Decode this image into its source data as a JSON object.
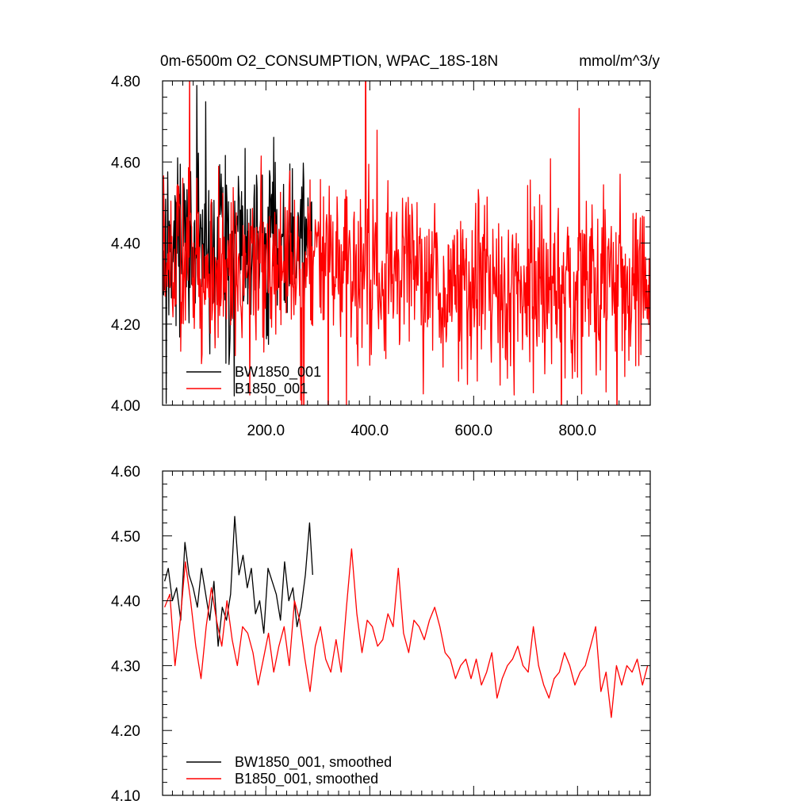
{
  "chart_data": [
    {
      "type": "line",
      "title": "0m-6500m O2_CONSUMPTION, WPAC_18S-18N",
      "units": "mmol/m^3/y",
      "xlabel": "",
      "ylabel": "",
      "xlim": [
        1,
        940
      ],
      "ylim": [
        4.0,
        4.8
      ],
      "x_ticks": [
        200,
        400,
        600,
        800
      ],
      "x_tick_labels": [
        "200.0",
        "400.0",
        "600.0",
        "800.0"
      ],
      "y_ticks": [
        4.0,
        4.2,
        4.4,
        4.6,
        4.8
      ],
      "y_tick_labels": [
        "4.00",
        "4.20",
        "4.40",
        "4.60",
        "4.80"
      ],
      "grid": false,
      "legend_position": "bottom-left",
      "series": [
        {
          "name": "BW1850_001",
          "color": "#000000",
          "x_range": [
            1,
            290
          ],
          "values_every_10_years": [
            4.4,
            4.46,
            4.34,
            4.5,
            4.38,
            4.42,
            4.3,
            4.47,
            4.36,
            4.41,
            4.33,
            4.45,
            4.39,
            4.28,
            4.43,
            4.48,
            4.35,
            4.42,
            4.37,
            4.4,
            4.31,
            4.46,
            4.38,
            4.44,
            4.34,
            4.42,
            4.39,
            4.47,
            4.36,
            4.43
          ]
        },
        {
          "name": "B1850_001",
          "color": "#ff0000",
          "x_range": [
            1,
            940
          ],
          "values_every_10_years": [
            4.38,
            4.4,
            4.33,
            4.39,
            4.36,
            4.41,
            4.31,
            4.37,
            4.35,
            4.33,
            4.29,
            4.36,
            4.32,
            4.38,
            4.33,
            4.3,
            4.35,
            4.37,
            4.31,
            4.34,
            4.33,
            4.37,
            4.34,
            4.32,
            4.38,
            4.36,
            4.33,
            4.3,
            4.36,
            4.35,
            4.39,
            4.33,
            4.35,
            4.37,
            4.34,
            4.3,
            4.33,
            4.35,
            4.31,
            4.35,
            4.34,
            4.37,
            4.32,
            4.34,
            4.36,
            4.33,
            4.37,
            4.35,
            4.34,
            4.32,
            4.3,
            4.33,
            4.29,
            4.31,
            4.28,
            4.3,
            4.32,
            4.29,
            4.31,
            4.28,
            4.3,
            4.27,
            4.31,
            4.29,
            4.32,
            4.28,
            4.3,
            4.27,
            4.31,
            4.29,
            4.27,
            4.3,
            4.29,
            4.31,
            4.28,
            4.3,
            4.27,
            4.29,
            4.3,
            4.26,
            4.29,
            4.31,
            4.28,
            4.3,
            4.27,
            4.29,
            4.3,
            4.28,
            4.29,
            4.31,
            4.28,
            4.29,
            4.3,
            4.28,
            4.3
          ]
        }
      ]
    },
    {
      "type": "line",
      "title": "",
      "xlabel": "",
      "ylabel": "",
      "xlim": [
        1,
        940
      ],
      "ylim": [
        4.1,
        4.6
      ],
      "x_ticks": [
        200,
        400,
        600,
        800
      ],
      "x_tick_labels": [],
      "y_ticks": [
        4.1,
        4.2,
        4.3,
        4.4,
        4.5,
        4.6
      ],
      "y_tick_labels": [
        "4.10",
        "4.20",
        "4.30",
        "4.40",
        "4.50",
        "4.60"
      ],
      "grid": false,
      "legend_position": "bottom-left",
      "series": [
        {
          "name": "BW1850_001, smoothed",
          "color": "#000000",
          "x": [
            5,
            12,
            20,
            28,
            36,
            44,
            52,
            60,
            68,
            76,
            84,
            92,
            100,
            108,
            116,
            124,
            132,
            140,
            148,
            156,
            164,
            172,
            180,
            188,
            196,
            204,
            212,
            220,
            228,
            236,
            244,
            252,
            260,
            268,
            276,
            284,
            290
          ],
          "values": [
            4.43,
            4.45,
            4.4,
            4.42,
            4.37,
            4.49,
            4.44,
            4.42,
            4.39,
            4.45,
            4.41,
            4.37,
            4.43,
            4.33,
            4.39,
            4.37,
            4.41,
            4.53,
            4.44,
            4.47,
            4.42,
            4.45,
            4.38,
            4.4,
            4.35,
            4.45,
            4.43,
            4.41,
            4.37,
            4.46,
            4.4,
            4.42,
            4.36,
            4.39,
            4.44,
            4.52,
            4.44
          ]
        },
        {
          "name": "B1850_001, smoothed",
          "color": "#ff0000",
          "x": [
            5,
            15,
            25,
            35,
            45,
            55,
            65,
            75,
            85,
            95,
            105,
            115,
            125,
            135,
            145,
            155,
            165,
            175,
            185,
            195,
            205,
            215,
            225,
            235,
            245,
            255,
            265,
            275,
            285,
            295,
            305,
            315,
            325,
            335,
            345,
            355,
            365,
            375,
            385,
            395,
            405,
            415,
            425,
            435,
            445,
            455,
            465,
            475,
            485,
            495,
            505,
            515,
            525,
            535,
            545,
            555,
            565,
            575,
            585,
            595,
            605,
            615,
            625,
            635,
            645,
            655,
            665,
            675,
            685,
            695,
            705,
            715,
            725,
            735,
            745,
            755,
            765,
            775,
            785,
            795,
            805,
            815,
            825,
            835,
            845,
            855,
            865,
            875,
            885,
            895,
            905,
            915,
            925,
            935
          ],
          "values": [
            4.39,
            4.41,
            4.3,
            4.37,
            4.46,
            4.4,
            4.33,
            4.28,
            4.36,
            4.42,
            4.37,
            4.33,
            4.4,
            4.34,
            4.3,
            4.36,
            4.35,
            4.32,
            4.27,
            4.31,
            4.35,
            4.29,
            4.33,
            4.36,
            4.3,
            4.4,
            4.37,
            4.31,
            4.26,
            4.33,
            4.36,
            4.31,
            4.29,
            4.34,
            4.29,
            4.39,
            4.48,
            4.38,
            4.32,
            4.37,
            4.36,
            4.33,
            4.34,
            4.38,
            4.36,
            4.45,
            4.35,
            4.32,
            4.37,
            4.36,
            4.34,
            4.37,
            4.39,
            4.36,
            4.32,
            4.31,
            4.28,
            4.3,
            4.31,
            4.28,
            4.31,
            4.27,
            4.29,
            4.32,
            4.25,
            4.28,
            4.3,
            4.31,
            4.33,
            4.3,
            4.29,
            4.36,
            4.3,
            4.27,
            4.25,
            4.28,
            4.29,
            4.32,
            4.3,
            4.27,
            4.29,
            4.3,
            4.33,
            4.36,
            4.26,
            4.29,
            4.22,
            4.3,
            4.27,
            4.3,
            4.29,
            4.31,
            4.27,
            4.3
          ]
        }
      ]
    }
  ]
}
